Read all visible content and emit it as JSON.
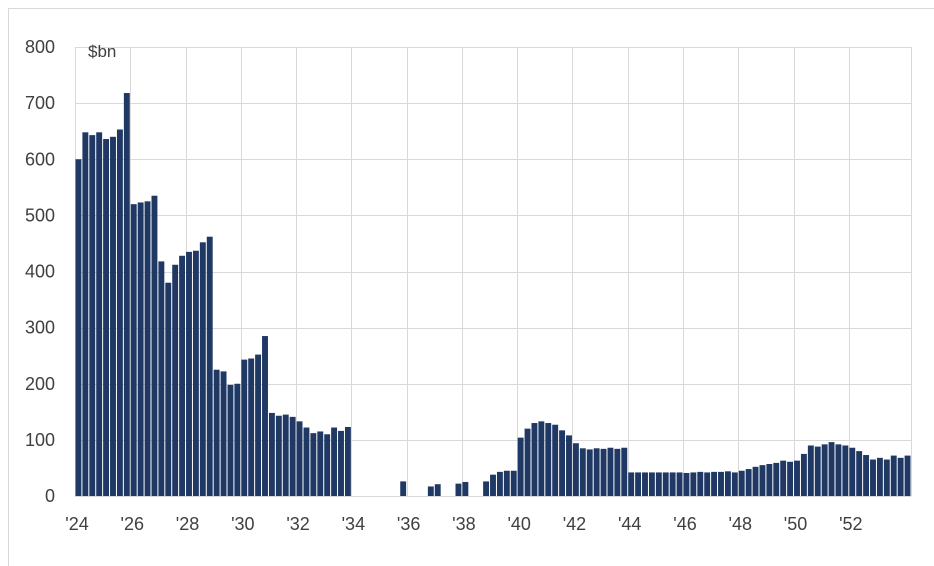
{
  "chart_data": {
    "type": "bar",
    "unit_label": "$bn",
    "ylim": [
      0,
      800
    ],
    "y_ticks": [
      0,
      100,
      200,
      300,
      400,
      500,
      600,
      700,
      800
    ],
    "x_ticks": [
      "'24",
      "'26",
      "'28",
      "'30",
      "'32",
      "'34",
      "'36",
      "'38",
      "'40",
      "'42",
      "'44",
      "'46",
      "'48",
      "'50",
      "'52"
    ],
    "x_start_year": 2024,
    "periods_per_year": 4,
    "grid": true,
    "legend": "none",
    "bar_color": "#1f3864",
    "values": [
      600,
      648,
      643,
      648,
      636,
      640,
      653,
      718,
      520,
      523,
      525,
      535,
      418,
      380,
      412,
      428,
      435,
      437,
      452,
      462,
      225,
      222,
      198,
      200,
      243,
      245,
      252,
      285,
      148,
      143,
      145,
      141,
      133,
      122,
      112,
      115,
      110,
      122,
      116,
      123,
      0,
      0,
      0,
      0,
      0,
      0,
      0,
      26,
      0,
      0,
      0,
      17,
      21,
      0,
      0,
      22,
      25,
      0,
      0,
      26,
      38,
      43,
      45,
      45,
      104,
      120,
      130,
      133,
      130,
      127,
      117,
      108,
      94,
      85,
      83,
      85,
      84,
      86,
      84,
      86,
      42,
      42,
      42,
      42,
      42,
      42,
      42,
      42,
      41,
      42,
      43,
      42,
      43,
      43,
      44,
      42,
      45,
      48,
      52,
      55,
      57,
      59,
      63,
      61,
      63,
      75,
      90,
      88,
      92,
      96,
      92,
      90,
      86,
      80,
      73,
      65,
      68,
      65,
      72,
      68,
      72
    ]
  }
}
